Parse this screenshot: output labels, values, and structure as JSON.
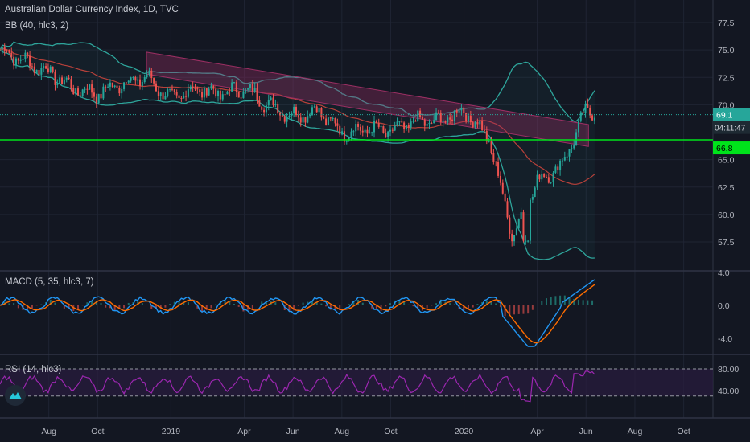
{
  "colors": {
    "background": "#131722",
    "grid": "#1f2433",
    "separator": "#2f3444",
    "axis_text": "#b2b5be",
    "up_candle": "#26a69a",
    "down_candle": "#ef5350",
    "bb_band": "#2ea59b",
    "bb_basis": "#b8413a",
    "channel": "#9c2f63",
    "horizontal_line": "#00e31b",
    "price_line": "#26a69a",
    "macd_line": "#2196f3",
    "signal_line": "#ff6d00",
    "rsi_line": "#9c27b0",
    "rsi_fill": "#2a1d3f"
  },
  "header": {
    "title": "Australian Dollar Currency Index, 1D, TVC",
    "bb_label": "BB (40, hlc3, 2)",
    "macd_label": "MACD (5, 35, hlc3, 7)",
    "rsi_label": "RSI (14, hlc3)"
  },
  "price_badges": {
    "last": "69.1",
    "countdown": "04:11:47",
    "hline": "66.8"
  },
  "logo_icon": "tradingview-logo-icon",
  "chart_data": [
    {
      "type": "candlestick",
      "pane": "price",
      "y_ticks": [
        "57.5",
        "60.0",
        "62.5",
        "65.0",
        "70.0",
        "72.5",
        "75.0",
        "77.5"
      ],
      "ylim": [
        55.5,
        78.5
      ],
      "x_ticks": [
        "Aug",
        "Oct",
        "2019",
        "Apr",
        "Jun",
        "Aug",
        "Oct",
        "2020",
        "Apr",
        "Jun",
        "Aug",
        "Oct"
      ],
      "x_range": [
        "2018-06",
        "2020-11"
      ],
      "overlays": [
        "Bollinger Bands (40, hlc3, 2)",
        "descending channel",
        "horizontal line 66.8",
        "last price line 69.1"
      ],
      "key_levels": {
        "last_price": 69.1,
        "horizontal_line": 66.8
      },
      "approx_path": [
        {
          "x": "2018-06",
          "y": 75.0
        },
        {
          "x": "2018-07",
          "y": 74.0
        },
        {
          "x": "2018-08",
          "y": 73.0
        },
        {
          "x": "2018-09",
          "y": 71.5
        },
        {
          "x": "2018-10",
          "y": 71.0
        },
        {
          "x": "2018-11",
          "y": 72.0
        },
        {
          "x": "2018-12",
          "y": 72.5
        },
        {
          "x": "2019-01",
          "y": 70.5
        },
        {
          "x": "2019-02",
          "y": 71.5
        },
        {
          "x": "2019-03",
          "y": 71.0
        },
        {
          "x": "2019-04",
          "y": 71.5
        },
        {
          "x": "2019-05",
          "y": 70.0
        },
        {
          "x": "2019-06",
          "y": 69.0
        },
        {
          "x": "2019-07",
          "y": 69.5
        },
        {
          "x": "2019-08",
          "y": 67.5
        },
        {
          "x": "2019-09",
          "y": 67.8
        },
        {
          "x": "2019-10",
          "y": 67.5
        },
        {
          "x": "2019-11",
          "y": 68.5
        },
        {
          "x": "2019-12",
          "y": 68.5
        },
        {
          "x": "2020-01",
          "y": 69.5
        },
        {
          "x": "2020-02",
          "y": 67.0
        },
        {
          "x": "2020-03",
          "y": 58.0
        },
        {
          "x": "2020-04",
          "y": 63.0
        },
        {
          "x": "2020-05",
          "y": 64.5
        },
        {
          "x": "2020-06",
          "y": 69.5
        }
      ],
      "min_low": 57.0
    },
    {
      "type": "line",
      "pane": "macd",
      "series": [
        {
          "name": "MACD"
        },
        {
          "name": "Signal"
        },
        {
          "name": "Histogram"
        }
      ],
      "y_ticks": [
        "4.0",
        "0.0",
        "-4.0"
      ],
      "ylim": [
        -5.5,
        4.2
      ],
      "approx_min": -5.0,
      "approx_last": 3.0
    },
    {
      "type": "line",
      "pane": "rsi",
      "series": [
        {
          "name": "RSI"
        }
      ],
      "y_ticks": [
        "80.00",
        "40.00"
      ],
      "levels": [
        70,
        30
      ],
      "ylim": [
        10,
        90
      ],
      "approx_min": 18,
      "approx_max": 78
    }
  ]
}
